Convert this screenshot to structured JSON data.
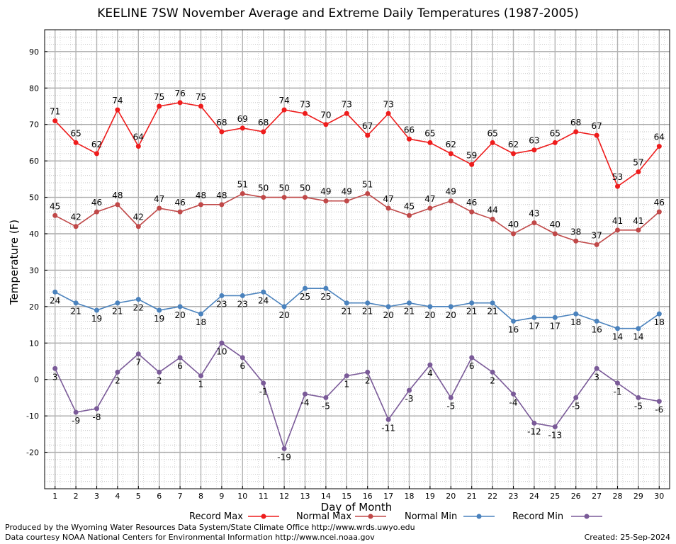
{
  "chart_data": {
    "type": "line",
    "title": "KEELINE 7SW November Average and Extreme Daily Temperatures (1987-2005)",
    "xlabel": "Day of Month",
    "ylabel": "Temperature (F)",
    "x": [
      1,
      2,
      3,
      4,
      5,
      6,
      7,
      8,
      9,
      10,
      11,
      12,
      13,
      14,
      15,
      16,
      17,
      18,
      19,
      20,
      21,
      22,
      23,
      24,
      25,
      26,
      27,
      28,
      29,
      30
    ],
    "xlim": [
      0.5,
      30.5
    ],
    "ylim": [
      -30,
      96
    ],
    "yticks": [
      -20,
      -10,
      0,
      10,
      20,
      30,
      40,
      50,
      60,
      70,
      80,
      90
    ],
    "grid": true,
    "legend_position": "bottom",
    "series": [
      {
        "name": "Record Max",
        "color": "#ee1c1c",
        "values": [
          71,
          65,
          62,
          74,
          64,
          75,
          76,
          75,
          68,
          69,
          68,
          74,
          73,
          70,
          73,
          67,
          73,
          66,
          65,
          62,
          59,
          65,
          62,
          63,
          65,
          68,
          67,
          53,
          57,
          64
        ]
      },
      {
        "name": "Normal Max",
        "color": "#c04848",
        "values": [
          45,
          42,
          46,
          48,
          42,
          47,
          46,
          48,
          48,
          51,
          50,
          50,
          50,
          49,
          49,
          51,
          47,
          45,
          47,
          49,
          46,
          44,
          40,
          43,
          40,
          38,
          37,
          41,
          41,
          46
        ]
      },
      {
        "name": "Normal Min",
        "color": "#4a82bd",
        "values": [
          24,
          21,
          19,
          21,
          22,
          19,
          20,
          18,
          23,
          23,
          24,
          20,
          25,
          25,
          21,
          21,
          20,
          21,
          20,
          20,
          21,
          21,
          16,
          17,
          17,
          18,
          16,
          14,
          14,
          18
        ]
      },
      {
        "name": "Record Min",
        "color": "#7a5a98",
        "values": [
          3,
          -9,
          -8,
          2,
          7,
          2,
          6,
          1,
          10,
          6,
          -1,
          -19,
          -4,
          -5,
          1,
          2,
          -11,
          -3,
          4,
          -5,
          6,
          2,
          -4,
          -12,
          -13,
          -5,
          3,
          -1,
          -5,
          -6
        ]
      }
    ]
  },
  "footer": {
    "credit_line_1": "Produced by the Wyoming Water Resources Data System/State Climate Office http://www.wrds.uwyo.edu",
    "credit_line_2": "Data courtesy NOAA National Centers for Environmental Information http://www.ncei.noaa.gov",
    "created": "Created: 25-Sep-2024"
  }
}
